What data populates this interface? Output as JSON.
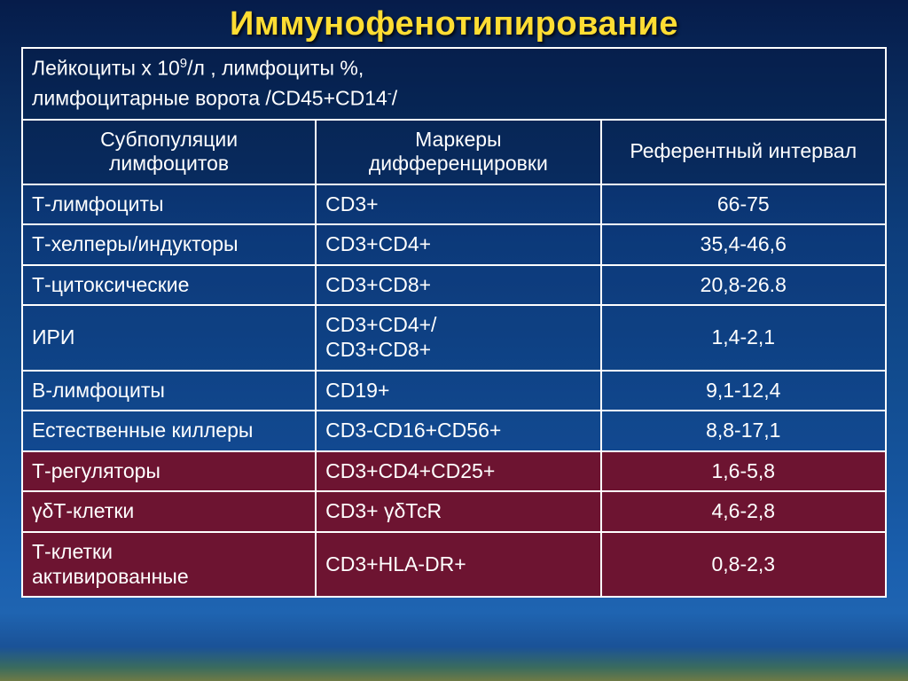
{
  "title": "Иммунофенотипирование",
  "title_color": "#ffdd33",
  "title_fontsize": 38,
  "text_color": "#ffffff",
  "border_color": "#ffffff",
  "bg_gradient_top": "#061c4a",
  "bg_gradient_bottom": "#6e7a46",
  "maroon_color": "#6d1431",
  "topblock": {
    "line1_part1": "Лейкоциты х 10",
    "line1_sup": "9",
    "line1_part2": "/л ,    лимфоциты %,",
    "line2_part1": "лимфоцитарные ворота /CD45+CD14",
    "line2_sup": "-",
    "line2_part2": "/"
  },
  "headers": {
    "c1a": "Субпопуляции",
    "c1b": "лимфоцитов",
    "c2a": "Маркеры",
    "c2b": "дифференцировки",
    "c3": "Референтный интервал"
  },
  "rows": [
    {
      "style": "blue",
      "sub": "Т-лимфоциты",
      "marker": "CD3+",
      "range": "66-75"
    },
    {
      "style": "blue",
      "sub": "Т-хелперы/индукторы",
      "marker": "CD3+CD4+",
      "range": "35,4-46,6"
    },
    {
      "style": "blue",
      "sub": "Т-цитоксические",
      "marker": "CD3+CD8+",
      "range": "20,8-26.8"
    },
    {
      "style": "blue",
      "sub": "ИРИ",
      "marker": "CD3+CD4+/",
      "marker2": "CD3+CD8+",
      "range": "1,4-2,1"
    },
    {
      "style": "blue",
      "sub": "В-лимфоциты",
      "marker": "CD19+",
      "range": "9,1-12,4"
    },
    {
      "style": "blue",
      "sub": "Естественные киллеры",
      "marker": "CD3-CD16+CD56+",
      "range": "8,8-17,1"
    },
    {
      "style": "mar",
      "sub": "Т-регуляторы",
      "marker": "CD3+CD4+CD25+",
      "range": "1,6-5,8"
    },
    {
      "style": "mar",
      "sub": "γδТ-клетки",
      "marker": "CD3+ γδТсR",
      "range": "4,6-2,8"
    },
    {
      "style": "mar",
      "sub": "Т-клетки",
      "sub2": "активированные",
      "marker": "CD3+HLA-DR+",
      "range": "0,8-2,3"
    }
  ]
}
